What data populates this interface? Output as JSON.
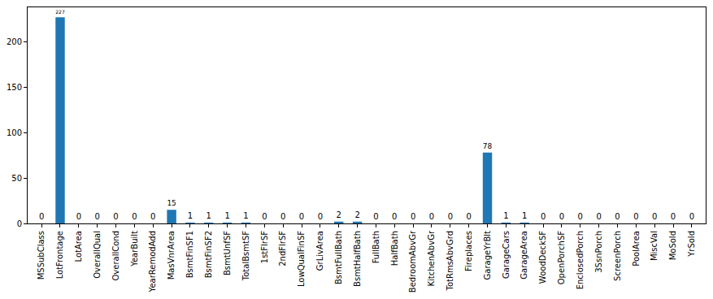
{
  "chart_data": {
    "type": "bar",
    "categories": [
      "MSSubClass",
      "LotFrontage",
      "LotArea",
      "OverallQual",
      "OverallCond",
      "YearBuilt",
      "YearRemodAdd",
      "MasVnrArea",
      "BsmtFinSF1",
      "BsmtFinSF2",
      "BsmtUnfSF",
      "TotalBsmtSF",
      "1stFlrSF",
      "2ndFlrSF",
      "LowQualFinSF",
      "GrLivArea",
      "BsmtFullBath",
      "BsmtHalfBath",
      "FullBath",
      "HalfBath",
      "BedroomAbvGr",
      "KitchenAbvGr",
      "TotRmsAbvGrd",
      "Fireplaces",
      "GarageYrBlt",
      "GarageCars",
      "GarageArea",
      "WoodDeckSF",
      "OpenPorchSF",
      "EnclosedPorch",
      "3SsnPorch",
      "ScreenPorch",
      "PoolArea",
      "MiscVal",
      "MoSold",
      "YrSold"
    ],
    "values": [
      0,
      227,
      0,
      0,
      0,
      0,
      0,
      15,
      1,
      1,
      1,
      1,
      0,
      0,
      0,
      0,
      2,
      2,
      0,
      0,
      0,
      0,
      0,
      0,
      78,
      1,
      1,
      0,
      0,
      0,
      0,
      0,
      0,
      0,
      0,
      0
    ],
    "color": "#1f77b4",
    "ylim": [
      0,
      238
    ],
    "yticks": [
      0,
      50,
      100,
      150,
      200
    ],
    "grid": false,
    "data_labels": true
  }
}
